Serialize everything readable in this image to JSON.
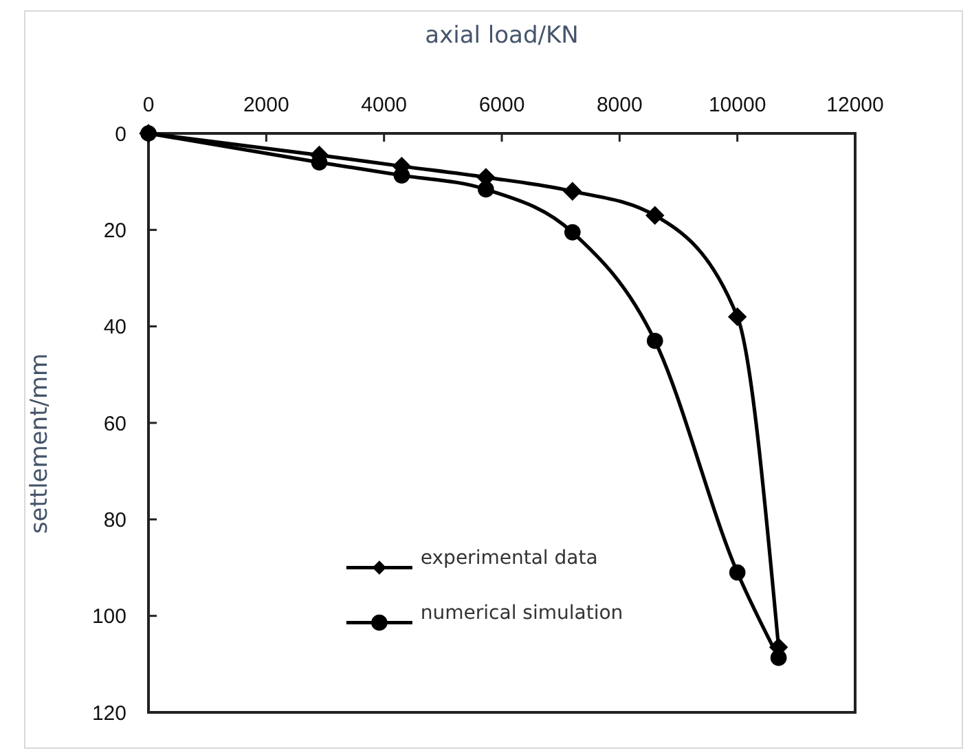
{
  "chart_data": {
    "type": "line",
    "xlabel": "axial load/KN",
    "ylabel": "settlement/mm",
    "x": [
      0,
      2900,
      4300,
      5730,
      7200,
      8600,
      10000,
      10700
    ],
    "series": [
      {
        "name": "experimental data",
        "color": "#000000",
        "marker": "diamond",
        "values": [
          0,
          4.5,
          6.8,
          9.1,
          12,
          17,
          38,
          106.5
        ]
      },
      {
        "name": "numerical simulation",
        "color": "#000000",
        "marker": "circle",
        "values": [
          0,
          6,
          8.7,
          11.6,
          20.5,
          43,
          91,
          108.7
        ]
      }
    ],
    "xlim": [
      0,
      12000
    ],
    "xticks": [
      0,
      2000,
      4000,
      6000,
      8000,
      10000,
      12000
    ],
    "ylim": [
      120,
      0
    ],
    "yticks": [
      0,
      20,
      40,
      60,
      80,
      100,
      120
    ],
    "legend": "bottom left"
  }
}
